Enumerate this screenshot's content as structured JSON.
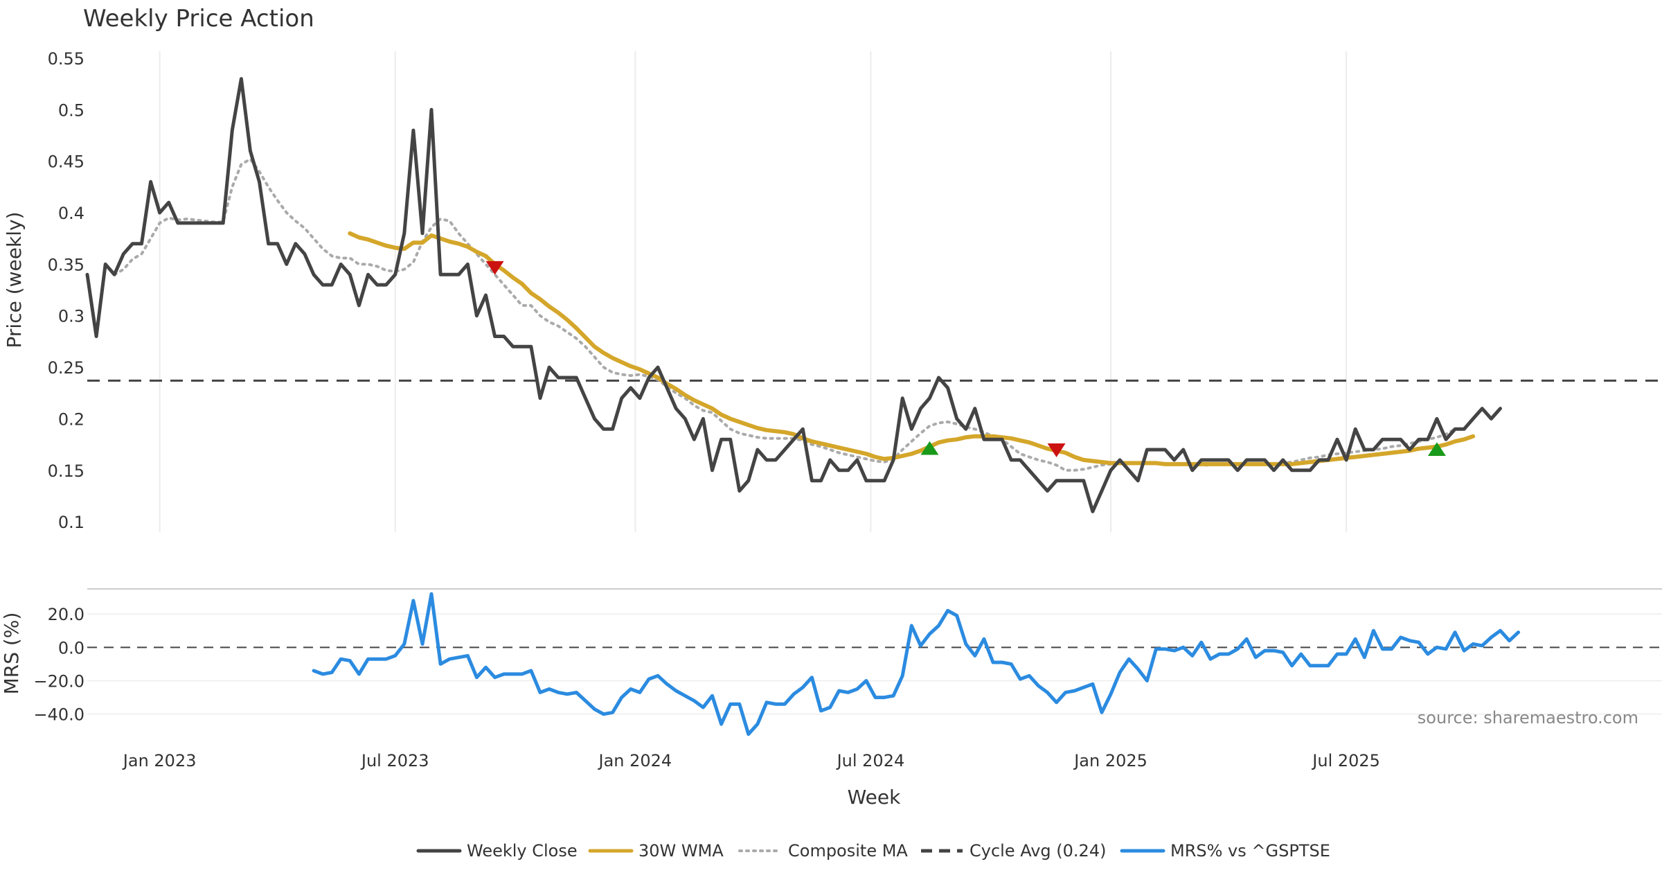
{
  "chart_data": [
    {
      "type": "line",
      "title": "Weekly Price Action",
      "ylabel": "Price (weekly)",
      "ylim": [
        0.09,
        0.55
      ],
      "yticks": [
        "0.1",
        "0.15",
        "0.2",
        "0.25",
        "0.3",
        "0.35",
        "0.4",
        "0.45",
        "0.5",
        "0.55"
      ],
      "ytick_values": [
        0.1,
        0.15,
        0.2,
        0.25,
        0.3,
        0.35,
        0.4,
        0.45,
        0.5,
        0.55
      ],
      "cycle_avg": 0.237,
      "series": [
        {
          "name": "Weekly Close",
          "color": "#444444",
          "style": "solid",
          "start_week": 0,
          "values": [
            0.34,
            0.28,
            0.35,
            0.34,
            0.36,
            0.37,
            0.37,
            0.43,
            0.4,
            0.41,
            0.39,
            0.39,
            0.39,
            0.39,
            0.39,
            0.39,
            0.48,
            0.53,
            0.46,
            0.43,
            0.37,
            0.37,
            0.35,
            0.37,
            0.36,
            0.34,
            0.33,
            0.33,
            0.35,
            0.34,
            0.31,
            0.34,
            0.33,
            0.33,
            0.34,
            0.38,
            0.48,
            0.38,
            0.5,
            0.34,
            0.34,
            0.34,
            0.35,
            0.3,
            0.32,
            0.28,
            0.28,
            0.27,
            0.27,
            0.27,
            0.22,
            0.25,
            0.24,
            0.24,
            0.24,
            0.22,
            0.2,
            0.19,
            0.19,
            0.22,
            0.23,
            0.22,
            0.24,
            0.25,
            0.23,
            0.21,
            0.2,
            0.18,
            0.2,
            0.15,
            0.18,
            0.18,
            0.13,
            0.14,
            0.17,
            0.16,
            0.16,
            0.17,
            0.18,
            0.19,
            0.14,
            0.14,
            0.16,
            0.15,
            0.15,
            0.16,
            0.14,
            0.14,
            0.14,
            0.16,
            0.22,
            0.19,
            0.21,
            0.22,
            0.24,
            0.23,
            0.2,
            0.19,
            0.21,
            0.18,
            0.18,
            0.18,
            0.16,
            0.16,
            0.15,
            0.14,
            0.13,
            0.14,
            0.14,
            0.14,
            0.14,
            0.11,
            0.13,
            0.15,
            0.16,
            0.15,
            0.14,
            0.17,
            0.17,
            0.17,
            0.16,
            0.17,
            0.15,
            0.16,
            0.16,
            0.16,
            0.16,
            0.15,
            0.16,
            0.16,
            0.16,
            0.15,
            0.16,
            0.15,
            0.15,
            0.15,
            0.16,
            0.16,
            0.18,
            0.16,
            0.19,
            0.17,
            0.17,
            0.18,
            0.18,
            0.18,
            0.17,
            0.18,
            0.18,
            0.2,
            0.18,
            0.19,
            0.19,
            0.2,
            0.21,
            0.2,
            0.21
          ]
        },
        {
          "name": "30W WMA",
          "color": "#d4a62a",
          "style": "solid",
          "start_week": 29,
          "values": [
            0.38,
            0.376,
            0.374,
            0.371,
            0.368,
            0.366,
            0.365,
            0.371,
            0.371,
            0.378,
            0.375,
            0.372,
            0.37,
            0.367,
            0.362,
            0.358,
            0.35,
            0.344,
            0.337,
            0.331,
            0.322,
            0.316,
            0.309,
            0.303,
            0.296,
            0.288,
            0.279,
            0.27,
            0.264,
            0.259,
            0.255,
            0.251,
            0.248,
            0.244,
            0.24,
            0.234,
            0.229,
            0.223,
            0.218,
            0.214,
            0.21,
            0.204,
            0.2,
            0.197,
            0.194,
            0.191,
            0.189,
            0.188,
            0.187,
            0.185,
            0.181,
            0.178,
            0.176,
            0.174,
            0.172,
            0.17,
            0.168,
            0.166,
            0.163,
            0.161,
            0.162,
            0.164,
            0.166,
            0.169,
            0.173,
            0.177,
            0.179,
            0.18,
            0.182,
            0.183,
            0.183,
            0.183,
            0.182,
            0.181,
            0.179,
            0.177,
            0.174,
            0.171,
            0.169,
            0.167,
            0.163,
            0.16,
            0.159,
            0.158,
            0.157,
            0.157,
            0.157,
            0.157,
            0.157,
            0.157,
            0.156,
            0.156,
            0.156,
            0.156,
            0.156,
            0.156,
            0.156,
            0.156,
            0.156,
            0.156,
            0.156,
            0.156,
            0.156,
            0.156,
            0.156,
            0.157,
            0.158,
            0.159,
            0.16,
            0.161,
            0.162,
            0.163,
            0.164,
            0.165,
            0.166,
            0.167,
            0.168,
            0.169,
            0.171,
            0.172,
            0.173,
            0.175,
            0.178,
            0.18,
            0.183
          ]
        },
        {
          "name": "Composite MA",
          "color": "#aaaaaa",
          "style": "dotted",
          "start_week": 3,
          "values": [
            0.34,
            0.345,
            0.355,
            0.36,
            0.375,
            0.39,
            0.395,
            0.393,
            0.394,
            0.393,
            0.392,
            0.391,
            0.391,
            0.425,
            0.447,
            0.452,
            0.44,
            0.425,
            0.412,
            0.4,
            0.392,
            0.385,
            0.375,
            0.365,
            0.358,
            0.356,
            0.356,
            0.35,
            0.35,
            0.348,
            0.344,
            0.343,
            0.345,
            0.352,
            0.372,
            0.386,
            0.394,
            0.392,
            0.38,
            0.37,
            0.36,
            0.35,
            0.34,
            0.33,
            0.32,
            0.31,
            0.31,
            0.3,
            0.294,
            0.29,
            0.284,
            0.278,
            0.27,
            0.26,
            0.25,
            0.245,
            0.243,
            0.242,
            0.243,
            0.241,
            0.238,
            0.231,
            0.225,
            0.22,
            0.213,
            0.208,
            0.206,
            0.198,
            0.19,
            0.186,
            0.184,
            0.182,
            0.181,
            0.181,
            0.181,
            0.181,
            0.179,
            0.175,
            0.173,
            0.17,
            0.167,
            0.165,
            0.163,
            0.161,
            0.159,
            0.158,
            0.161,
            0.17,
            0.178,
            0.186,
            0.193,
            0.196,
            0.197,
            0.195,
            0.192,
            0.19,
            0.187,
            0.183,
            0.18,
            0.173,
            0.166,
            0.163,
            0.16,
            0.158,
            0.155,
            0.15,
            0.15,
            0.151,
            0.153,
            0.155,
            0.156,
            0.157,
            0.157,
            0.157,
            0.157,
            0.157,
            0.156,
            0.156,
            0.156,
            0.156,
            0.155,
            0.155,
            0.156,
            0.156,
            0.156,
            0.156,
            0.156,
            0.156,
            0.156,
            0.157,
            0.158,
            0.16,
            0.162,
            0.163,
            0.165,
            0.166,
            0.167,
            0.168,
            0.169,
            0.17,
            0.171,
            0.173,
            0.174,
            0.176,
            0.178,
            0.18,
            0.182,
            0.185,
            0.19
          ]
        }
      ],
      "markers": [
        {
          "type": "sell",
          "week": 45,
          "value": 0.347,
          "color": "#cc1111"
        },
        {
          "type": "buy",
          "week": 93,
          "value": 0.171,
          "color": "#1a9a1a"
        },
        {
          "type": "sell",
          "week": 107,
          "value": 0.17,
          "color": "#cc1111"
        },
        {
          "type": "buy",
          "week": 149,
          "value": 0.17,
          "color": "#1a9a1a"
        }
      ]
    },
    {
      "type": "line",
      "ylabel": "MRS (%)",
      "ylim": [
        -53,
        35
      ],
      "yticks": [
        "20.0",
        "0.0",
        "−20.0",
        "−40.0"
      ],
      "ytick_values": [
        20,
        0,
        -20,
        -40
      ],
      "zero_line": 0,
      "series": [
        {
          "name": "MRS% vs ^GSPTSE",
          "color": "#2b8be0",
          "style": "solid",
          "start_week": 25,
          "values": [
            -14,
            -16,
            -15,
            -7,
            -8,
            -16,
            -7,
            -7,
            -7,
            -5,
            2,
            28,
            2,
            32,
            -10,
            -7,
            -6,
            -5,
            -18,
            -12,
            -18,
            -16,
            -16,
            -16,
            -14,
            -27,
            -25,
            -27,
            -28,
            -27,
            -32,
            -37,
            -40,
            -39,
            -30,
            -25,
            -27,
            -19,
            -17,
            -22,
            -26,
            -29,
            -32,
            -36,
            -29,
            -46,
            -34,
            -34,
            -52,
            -46,
            -33,
            -34,
            -34,
            -28,
            -24,
            -18,
            -38,
            -36,
            -26,
            -27,
            -25,
            -20,
            -30,
            -30,
            -29,
            -17,
            13,
            1,
            8,
            13,
            22,
            19,
            2,
            -5,
            5,
            -9,
            -9,
            -10,
            -19,
            -17,
            -23,
            -27,
            -33,
            -27,
            -26,
            -24,
            -22,
            -39,
            -28,
            -15,
            -7,
            -13,
            -20,
            -1,
            -1,
            -2,
            0,
            -5,
            3,
            -7,
            -4,
            -4,
            -1,
            5,
            -6,
            -2,
            -2,
            -3,
            -11,
            -4,
            -11,
            -11,
            -11,
            -4,
            -4,
            5,
            -6,
            10,
            -1,
            -1,
            6,
            4,
            3,
            -4,
            0,
            -1,
            9,
            -2,
            2,
            1,
            6,
            10,
            4,
            9
          ]
        }
      ]
    }
  ],
  "x_axis": {
    "label": "Week",
    "ticks": [
      {
        "label": "Jan 2023",
        "week": 8
      },
      {
        "label": "Jul 2023",
        "week": 34
      },
      {
        "label": "Jan 2024",
        "week": 60.5
      },
      {
        "label": "Jul 2024",
        "week": 86.5
      },
      {
        "label": "Jan 2025",
        "week": 113
      },
      {
        "label": "Jul 2025",
        "week": 139
      }
    ]
  },
  "legend": [
    {
      "label": "Weekly Close",
      "color": "#444444",
      "style": "solid"
    },
    {
      "label": "30W WMA",
      "color": "#d4a62a",
      "style": "solid"
    },
    {
      "label": "Composite MA",
      "color": "#aaaaaa",
      "style": "dotted"
    },
    {
      "label": "Cycle Avg (0.24)",
      "color": "#444444",
      "style": "dashed"
    },
    {
      "label": "MRS% vs ^GSPTSE",
      "color": "#2b8be0",
      "style": "solid"
    }
  ],
  "source_text": "source: sharemaestro.com"
}
